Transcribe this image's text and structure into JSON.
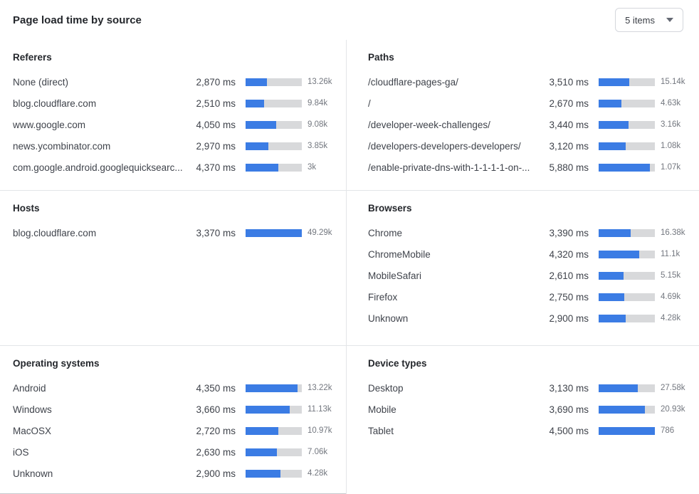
{
  "header": {
    "title": "Page load time by source",
    "items_dropdown": {
      "value": "5 items"
    }
  },
  "colors": {
    "bar_fill": "#3B7CE4",
    "bar_track": "#D8D9DB",
    "divider": "#E3E5E8"
  },
  "chart_data": [
    {
      "type": "bar",
      "title": "Referers",
      "value_unit": "ms",
      "bar_scale_ms": 7500,
      "categories": [
        "None (direct)",
        "blog.cloudflare.com",
        "www.google.com",
        "news.ycombinator.com",
        "com.google.android.googlequicksearc..."
      ],
      "values_ms": [
        2870,
        2510,
        4050,
        2970,
        4370
      ],
      "ms_labels": [
        "2,870 ms",
        "2,510 ms",
        "4,050 ms",
        "2,970 ms",
        "4,370 ms"
      ],
      "counts": [
        13260,
        9840,
        9080,
        3850,
        3000
      ],
      "count_labels": [
        "13.26k",
        "9.84k",
        "9.08k",
        "3.85k",
        "3k"
      ],
      "bar_pct": [
        38,
        33,
        54,
        40,
        58
      ]
    },
    {
      "type": "bar",
      "title": "Paths",
      "value_unit": "ms",
      "bar_scale_ms": 6480,
      "categories": [
        "/cloudflare-pages-ga/",
        "/",
        "/developer-week-challenges/",
        "/developers-developers-developers/",
        "/enable-private-dns-with-1-1-1-1-on-..."
      ],
      "values_ms": [
        3510,
        2670,
        3440,
        3120,
        5880
      ],
      "ms_labels": [
        "3,510 ms",
        "2,670 ms",
        "3,440 ms",
        "3,120 ms",
        "5,880 ms"
      ],
      "counts": [
        15140,
        4630,
        3160,
        1080,
        1070
      ],
      "count_labels": [
        "15.14k",
        "4.63k",
        "3.16k",
        "1.08k",
        "1.07k"
      ],
      "bar_pct": [
        54,
        41,
        53,
        48,
        91
      ]
    },
    {
      "type": "bar",
      "title": "Hosts",
      "value_unit": "ms",
      "bar_scale_ms": 3370,
      "categories": [
        "blog.cloudflare.com"
      ],
      "values_ms": [
        3370
      ],
      "ms_labels": [
        "3,370 ms"
      ],
      "counts": [
        49290
      ],
      "count_labels": [
        "49.29k"
      ],
      "bar_pct": [
        100
      ]
    },
    {
      "type": "bar",
      "title": "Browsers",
      "value_unit": "ms",
      "bar_scale_ms": 6000,
      "categories": [
        "Chrome",
        "ChromeMobile",
        "MobileSafari",
        "Firefox",
        "Unknown"
      ],
      "values_ms": [
        3390,
        4320,
        2610,
        2750,
        2900
      ],
      "ms_labels": [
        "3,390 ms",
        "4,320 ms",
        "2,610 ms",
        "2,750 ms",
        "2,900 ms"
      ],
      "counts": [
        16380,
        11100,
        5150,
        4690,
        4280
      ],
      "count_labels": [
        "16.38k",
        "11.1k",
        "5.15k",
        "4.69k",
        "4.28k"
      ],
      "bar_pct": [
        57,
        72,
        44,
        46,
        48
      ]
    },
    {
      "type": "bar",
      "title": "Operating systems",
      "value_unit": "ms",
      "bar_scale_ms": 4700,
      "categories": [
        "Android",
        "Windows",
        "MacOSX",
        "iOS",
        "Unknown"
      ],
      "values_ms": [
        4350,
        3660,
        2720,
        2630,
        2900
      ],
      "ms_labels": [
        "4,350 ms",
        "3,660 ms",
        "2,720 ms",
        "2,630 ms",
        "2,900 ms"
      ],
      "counts": [
        13220,
        11130,
        10970,
        7060,
        4280
      ],
      "count_labels": [
        "13.22k",
        "11.13k",
        "10.97k",
        "7.06k",
        "4.28k"
      ],
      "bar_pct": [
        93,
        78,
        58,
        56,
        62
      ]
    },
    {
      "type": "bar",
      "title": "Device types",
      "value_unit": "ms",
      "bar_scale_ms": 4500,
      "categories": [
        "Desktop",
        "Mobile",
        "Tablet"
      ],
      "values_ms": [
        3130,
        3690,
        4500
      ],
      "ms_labels": [
        "3,130 ms",
        "3,690 ms",
        "4,500 ms"
      ],
      "counts": [
        27580,
        20930,
        786
      ],
      "count_labels": [
        "27.58k",
        "20.93k",
        "786"
      ],
      "bar_pct": [
        70,
        82,
        100
      ]
    }
  ]
}
